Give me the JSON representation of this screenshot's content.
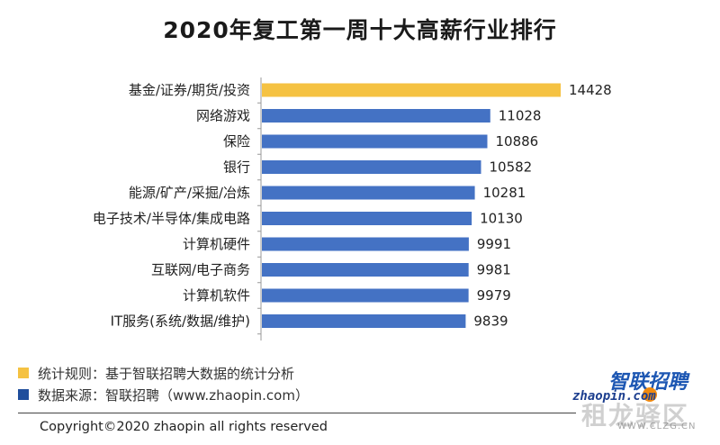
{
  "chart_data": {
    "type": "bar",
    "orientation": "horizontal",
    "title": "2020年复工第一周十大高薪行业排行",
    "categories": [
      "基金/证券/期货/投资",
      "网络游戏",
      "保险",
      "银行",
      "能源/矿产/采掘/冶炼",
      "电子技术/半导体/集成电路",
      "计算机硬件",
      "互联网/电子商务",
      "计算机软件",
      "IT服务(系统/数据/维护)"
    ],
    "values": [
      14428,
      11028,
      10886,
      10582,
      10281,
      10130,
      9991,
      9981,
      9979,
      9839
    ],
    "data_labels": [
      "14428",
      "11028",
      "10886",
      "10582",
      "10281",
      "10130",
      "9991",
      "9981",
      "9979",
      "9839"
    ],
    "xlim": [
      0,
      14428
    ],
    "grid": false,
    "highlight_color": "#F5C242",
    "bar_color": "#4472C4"
  },
  "notes": [
    {
      "text": "统计规则：基于智联招聘大数据的统计分析",
      "color": "#F5C242"
    },
    {
      "text": "数据来源：智联招聘（www.zhaopin.com）",
      "color": "#1F4E9C"
    }
  ],
  "copyright": "Copyright©2020 zhaopin all rights reserved",
  "logo": {
    "name_cn": "智联招聘",
    "name_en": "zhaopin.com",
    "watermark_cn": "租龙驿区",
    "watermark_url": "WWW.CLZG.CN"
  }
}
